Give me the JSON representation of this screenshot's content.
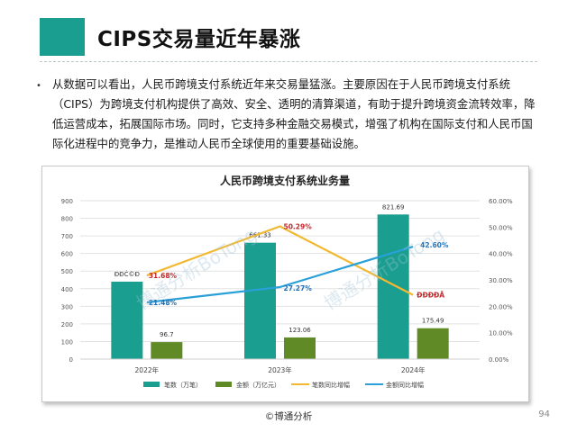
{
  "slide": {
    "title": "CIPS交易量近年暴涨",
    "body": "从数据可以看出，人民币跨境支付系统近年来交易量猛涨。主要原因在于人民币跨境支付系统（CIPS）为跨境支付机构提供了高效、安全、透明的清算渠道，有助于提升跨境资金流转效率，降低运营成本，拓展国际市场。同时，它支持多种金融交易模式，增强了机构在国际支付和人民币国际化进程中的竞争力，是推动人民币全球使用的重要基础设施。",
    "bullet": "•",
    "footer": "©博通分析",
    "page_number": "94"
  },
  "colors": {
    "accent": "#1a9e8f",
    "count_bar": "#1a9e8f",
    "amount_bar": "#5f8a26",
    "count_growth": "#f2b830",
    "amount_growth": "#29a0d8",
    "growth_label_red": "#c0282b",
    "growth_label_blue": "#1f6fb5"
  },
  "chart_data": {
    "type": "bar",
    "title": "人民币跨境支付系统业务量",
    "categories": [
      "2022年",
      "2023年",
      "2024年"
    ],
    "series": [
      {
        "name": "笔数（万笔）",
        "kind": "bar",
        "axis": "left",
        "values": [
          440,
          661.33,
          821.69
        ],
        "labels": [
          "ÐÐĊ©Ð",
          "661.33",
          "821.69"
        ]
      },
      {
        "name": "金额（万亿元）",
        "kind": "bar",
        "axis": "left",
        "values": [
          96.7,
          123.06,
          175.49
        ],
        "labels": [
          "96.7",
          "123.06",
          "175.49"
        ]
      },
      {
        "name": "笔数同比增幅",
        "kind": "line",
        "axis": "right",
        "values": [
          31.68,
          50.29,
          24.3
        ],
        "labels": [
          "31.68%",
          "50.29%",
          "ÐÐĐÐÃ"
        ]
      },
      {
        "name": "金额同比增幅",
        "kind": "line",
        "axis": "right",
        "values": [
          21.48,
          27.27,
          42.6
        ],
        "labels": [
          "21.48%",
          "27.27%",
          "42.60%"
        ]
      }
    ],
    "y_left": {
      "min": 0,
      "max": 900,
      "ticks": [
        "0",
        "100",
        "200",
        "300",
        "400",
        "500",
        "600",
        "700",
        "800",
        "900"
      ]
    },
    "y_right": {
      "min": 0,
      "max": 60,
      "ticks": [
        "0.00%",
        "10.00%",
        "20.00%",
        "30.00%",
        "40.00%",
        "50.00%",
        "60.00%"
      ]
    },
    "grid": true,
    "legend": "bottom",
    "watermark": "博通分析BoTong"
  }
}
